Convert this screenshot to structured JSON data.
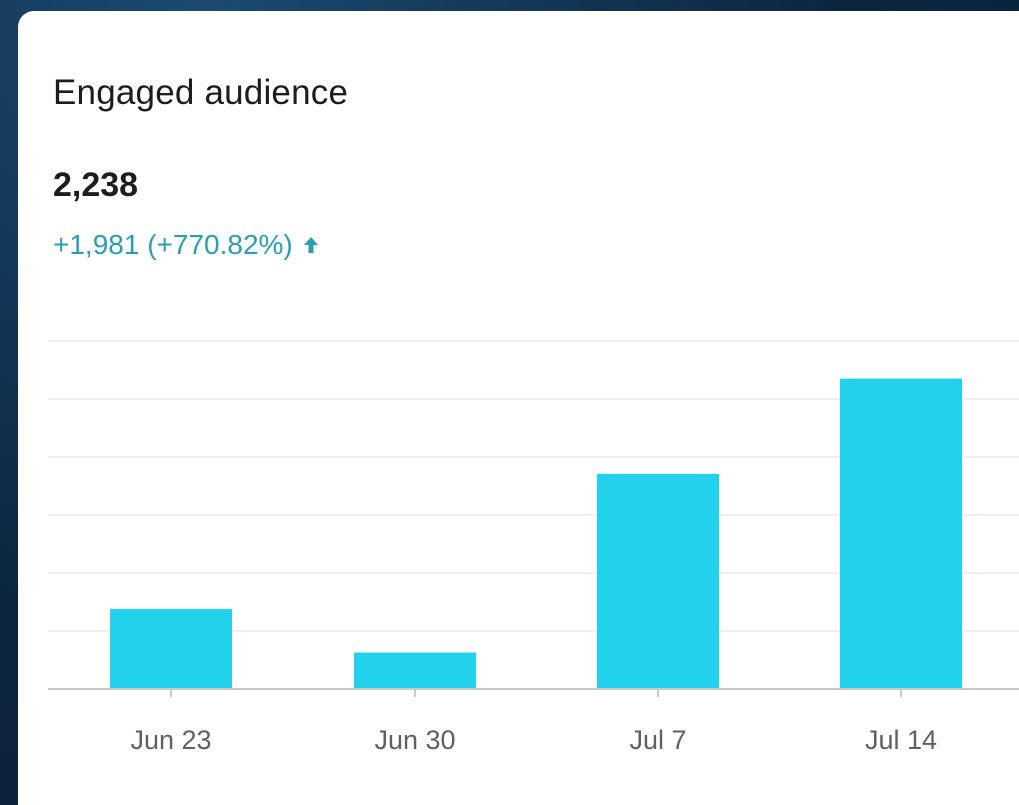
{
  "card": {
    "title": "Engaged audience",
    "value": "2,238",
    "change": "+1,981 (+770.82%)",
    "change_icon": "arrow-up-icon"
  },
  "colors": {
    "bar": "#22d2ec",
    "change_text": "#2a9fb4",
    "gridline": "#ececec",
    "axis": "#c9c9c9"
  },
  "chart_data": {
    "type": "bar",
    "title": "Engaged audience",
    "categories": [
      "Jun 23",
      "Jun 30",
      "Jul 7",
      "Jul 14"
    ],
    "values": [
      680,
      310,
      1830,
      2640
    ],
    "ylim": [
      0,
      2960
    ],
    "grid": true,
    "xlabel": "",
    "ylabel": ""
  }
}
